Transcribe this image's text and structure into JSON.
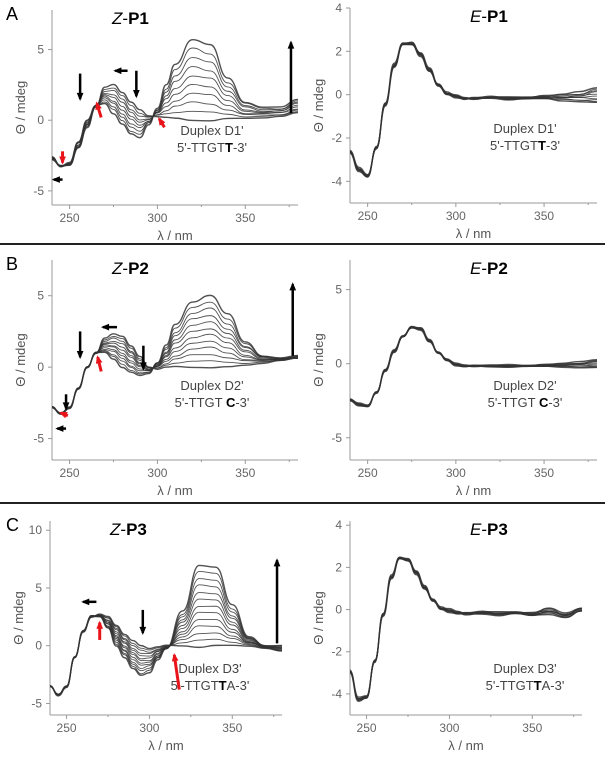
{
  "panels": [
    {
      "letter": "A"
    },
    {
      "letter": "B"
    },
    {
      "letter": "C"
    }
  ],
  "chart_data": [
    {
      "type": "line",
      "panel": "A",
      "title": {
        "prefix": "Z",
        "sep": "-",
        "main": "P1"
      },
      "annotation": {
        "line1": "Duplex D1'",
        "seq_pre": "5'-TTGT",
        "seq_bold": "T",
        "seq_post": "-3'"
      },
      "xlabel": "λ / nm",
      "ylabel": "Θ / mdeg",
      "xlim": [
        240,
        380
      ],
      "ylim": [
        -6,
        7.8
      ],
      "xticks": [
        250,
        300,
        350
      ],
      "yticks": [
        -5,
        0,
        5
      ],
      "n_spectra": 10,
      "x": [
        240,
        245,
        250,
        255,
        260,
        265,
        270,
        275,
        280,
        285,
        290,
        295,
        300,
        305,
        310,
        320,
        330,
        340,
        350,
        360,
        370,
        380
      ],
      "series": [
        {
          "values": [
            -2.8,
            -3.2,
            -3.2,
            -2.0,
            -0.5,
            1.0,
            2.3,
            2.5,
            2.0,
            1.3,
            0.7,
            0.3,
            0.3,
            0.2,
            0.1,
            0.0,
            0.0,
            0.1,
            0.1,
            0.2,
            0.3,
            0.5
          ]
        },
        {
          "values": [
            -2.6,
            -3.3,
            -3.0,
            -1.5,
            0.0,
            1.0,
            1.2,
            0.5,
            -0.3,
            -1.0,
            -1.2,
            -0.3,
            0.8,
            2.5,
            4.0,
            5.7,
            5.3,
            3.0,
            1.3,
            0.9,
            0.9,
            1.5
          ]
        }
      ]
    },
    {
      "type": "line",
      "panel": "A",
      "title": {
        "prefix": "E",
        "sep": "-",
        "main": "P1"
      },
      "annotation": {
        "line1": "Duplex D1'",
        "seq_pre": "5'-TTGT",
        "seq_bold": "T",
        "seq_post": "-3'"
      },
      "xlabel": "λ / nm",
      "ylabel": "Θ / mdeg",
      "xlim": [
        240,
        380
      ],
      "ylim": [
        -5,
        4
      ],
      "xticks": [
        250,
        300,
        350
      ],
      "yticks": [
        -4,
        -2,
        0,
        2,
        4
      ],
      "n_spectra": 10,
      "x": [
        240,
        245,
        250,
        255,
        260,
        265,
        270,
        275,
        280,
        285,
        290,
        295,
        300,
        305,
        310,
        320,
        330,
        340,
        350,
        360,
        370,
        380
      ],
      "series": [
        {
          "values": [
            -2.7,
            -3.5,
            -3.8,
            -2.5,
            -0.5,
            1.3,
            2.3,
            2.3,
            1.8,
            1.1,
            0.4,
            0.0,
            -0.1,
            -0.2,
            -0.2,
            -0.15,
            -0.2,
            -0.2,
            -0.2,
            -0.25,
            -0.3,
            -0.4
          ]
        },
        {
          "values": [
            -2.6,
            -3.4,
            -3.7,
            -2.4,
            -0.4,
            1.4,
            2.4,
            2.4,
            1.9,
            1.2,
            0.5,
            0.1,
            -0.05,
            -0.15,
            -0.15,
            -0.1,
            -0.15,
            -0.1,
            -0.05,
            0.0,
            0.1,
            0.35
          ]
        }
      ]
    },
    {
      "type": "line",
      "panel": "B",
      "title": {
        "prefix": "Z",
        "sep": "-",
        "main": "P2"
      },
      "annotation": {
        "line1": "Duplex D2'",
        "seq_pre": "5'-TTGT ",
        "seq_bold": "C",
        "seq_post": "-3'"
      },
      "xlabel": "λ / nm",
      "ylabel": "Θ / mdeg",
      "xlim": [
        240,
        380
      ],
      "ylim": [
        -6.5,
        7.5
      ],
      "xticks": [
        250,
        300,
        350
      ],
      "yticks": [
        -5,
        0,
        5
      ],
      "n_spectra": 12,
      "x": [
        240,
        245,
        250,
        255,
        260,
        265,
        270,
        275,
        280,
        285,
        290,
        295,
        300,
        305,
        310,
        320,
        330,
        340,
        350,
        360,
        370,
        380
      ],
      "series": [
        {
          "values": [
            -2.8,
            -3.2,
            -2.8,
            -1.5,
            0.0,
            1.0,
            2.0,
            2.3,
            2.2,
            1.5,
            0.7,
            0.0,
            -0.1,
            0.0,
            0.0,
            0.0,
            0.0,
            0.0,
            0.1,
            0.3,
            0.5,
            0.6
          ]
        },
        {
          "values": [
            -2.8,
            -3.3,
            -2.9,
            -1.5,
            0.0,
            1.0,
            1.0,
            0.6,
            0.0,
            -0.4,
            -0.6,
            -0.4,
            0.3,
            1.5,
            3.0,
            4.6,
            5.0,
            3.7,
            1.8,
            0.8,
            0.6,
            0.8
          ]
        }
      ]
    },
    {
      "type": "line",
      "panel": "B",
      "title": {
        "prefix": "E",
        "sep": "-",
        "main": "P2"
      },
      "annotation": {
        "line1": "Duplex D2'",
        "seq_pre": "5'-TTGT ",
        "seq_bold": "C",
        "seq_post": "-3'"
      },
      "xlabel": "λ / nm",
      "ylabel": "Θ / mdeg",
      "xlim": [
        240,
        380
      ],
      "ylim": [
        -6.5,
        7
      ],
      "xticks": [
        250,
        300,
        350
      ],
      "yticks": [
        -5,
        0,
        5
      ],
      "n_spectra": 10,
      "x": [
        240,
        245,
        250,
        255,
        260,
        265,
        270,
        275,
        280,
        285,
        290,
        295,
        300,
        305,
        310,
        320,
        330,
        340,
        350,
        360,
        370,
        380
      ],
      "series": [
        {
          "values": [
            -2.5,
            -2.8,
            -2.9,
            -2.0,
            -0.5,
            0.8,
            1.8,
            2.4,
            2.3,
            1.5,
            0.7,
            0.2,
            -0.1,
            -0.2,
            -0.2,
            -0.2,
            -0.2,
            -0.2,
            -0.2,
            -0.2,
            -0.25,
            -0.3
          ]
        },
        {
          "values": [
            -2.4,
            -2.7,
            -2.8,
            -1.9,
            -0.4,
            0.9,
            1.9,
            2.5,
            2.4,
            1.6,
            0.8,
            0.3,
            0.0,
            -0.1,
            -0.1,
            -0.1,
            -0.1,
            -0.1,
            -0.05,
            0.0,
            0.1,
            0.3
          ]
        }
      ]
    },
    {
      "type": "line",
      "panel": "C",
      "title": {
        "prefix": "Z",
        "sep": "-",
        "main": "P3"
      },
      "annotation": {
        "line1": "Duplex D3'",
        "seq_pre": "5'-TTGT",
        "seq_bold": "T",
        "seq_post": "A-3'"
      },
      "xlabel": "λ / nm",
      "ylabel": "Θ / mdeg",
      "xlim": [
        240,
        380
      ],
      "ylim": [
        -6,
        10.8
      ],
      "xticks": [
        250,
        300,
        350
      ],
      "yticks": [
        -5,
        0,
        5,
        10
      ],
      "n_spectra": 13,
      "x": [
        240,
        245,
        250,
        255,
        260,
        265,
        270,
        275,
        280,
        285,
        290,
        295,
        300,
        305,
        310,
        320,
        330,
        340,
        350,
        360,
        370,
        380
      ],
      "series": [
        {
          "values": [
            -3.5,
            -4.2,
            -3.5,
            -1.0,
            1.2,
            2.5,
            2.7,
            2.5,
            1.8,
            1.0,
            0.4,
            0.0,
            -0.2,
            -0.1,
            0.0,
            0.0,
            -0.1,
            0.0,
            0.0,
            0.0,
            -0.2,
            -0.5
          ]
        },
        {
          "values": [
            -3.5,
            -4.3,
            -3.6,
            -1.0,
            1.3,
            2.6,
            2.5,
            1.5,
            0.0,
            -1.0,
            -2.0,
            -2.6,
            -2.3,
            -1.2,
            -0.3,
            3.0,
            7.0,
            6.8,
            3.5,
            0.8,
            0.0,
            0.0
          ]
        }
      ]
    },
    {
      "type": "line",
      "panel": "C",
      "title": {
        "prefix": "E",
        "sep": "-",
        "main": "P3"
      },
      "annotation": {
        "line1": "Duplex D3'",
        "seq_pre": "5'-TTGT",
        "seq_bold": "T",
        "seq_post": "A-3'"
      },
      "xlabel": "λ / nm",
      "ylabel": "Θ / mdeg",
      "xlim": [
        240,
        380
      ],
      "ylim": [
        -5,
        4.2
      ],
      "xticks": [
        250,
        300,
        350
      ],
      "yticks": [
        -4,
        -2,
        0,
        2,
        4
      ],
      "n_spectra": 10,
      "x": [
        240,
        245,
        250,
        255,
        260,
        265,
        270,
        275,
        280,
        285,
        290,
        295,
        300,
        305,
        310,
        320,
        330,
        340,
        350,
        360,
        370,
        380
      ],
      "series": [
        {
          "values": [
            -3.0,
            -4.3,
            -4.2,
            -2.5,
            -0.3,
            1.5,
            2.4,
            2.3,
            1.7,
            1.0,
            0.4,
            0.0,
            -0.1,
            -0.2,
            -0.25,
            -0.2,
            -0.25,
            -0.2,
            -0.3,
            -0.2,
            -0.35,
            -0.1
          ]
        },
        {
          "values": [
            -2.9,
            -4.2,
            -4.1,
            -2.4,
            -0.2,
            1.6,
            2.5,
            2.4,
            1.8,
            1.1,
            0.5,
            0.1,
            0.0,
            -0.1,
            -0.15,
            -0.1,
            -0.15,
            -0.1,
            -0.15,
            0.05,
            -0.2,
            0.1
          ]
        }
      ]
    }
  ],
  "colors": {
    "curve": "#333333",
    "arrow_black": "#000000",
    "arrow_red": "#e8141a",
    "axis": "#999999"
  }
}
